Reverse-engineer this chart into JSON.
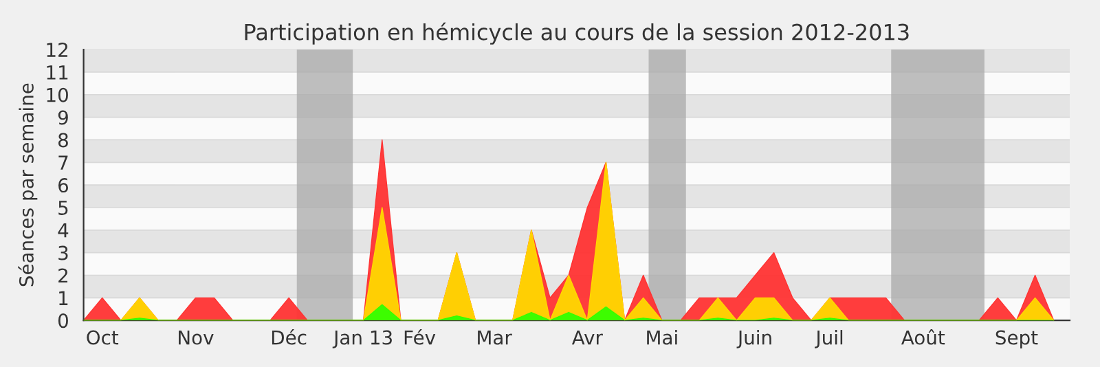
{
  "chart_data": {
    "type": "area",
    "title": "Participation en hémicycle au cours de la session 2012-2013",
    "ylabel": "Séances par semaine",
    "x": [
      "2012-09-28",
      "2012-10-05",
      "2012-10-12",
      "2012-10-19",
      "2012-10-26",
      "2012-11-02",
      "2012-11-09",
      "2012-11-16",
      "2012-11-23",
      "2012-11-30",
      "2012-12-07",
      "2012-12-14",
      "2012-12-21",
      "2012-12-28",
      "2013-01-04",
      "2013-01-11",
      "2013-01-18",
      "2013-01-25",
      "2013-02-01",
      "2013-02-08",
      "2013-02-15",
      "2013-02-22",
      "2013-03-01",
      "2013-03-08",
      "2013-03-15",
      "2013-03-22",
      "2013-03-29",
      "2013-04-05",
      "2013-04-12",
      "2013-04-19",
      "2013-04-26",
      "2013-05-03",
      "2013-05-10",
      "2013-05-17",
      "2013-05-24",
      "2013-05-31",
      "2013-06-07",
      "2013-06-14",
      "2013-06-21",
      "2013-06-28",
      "2013-07-05",
      "2013-07-12",
      "2013-07-19",
      "2013-07-26",
      "2013-08-02",
      "2013-08-09",
      "2013-08-16",
      "2013-08-23",
      "2013-08-30",
      "2013-09-06",
      "2013-09-13",
      "2013-09-20",
      "2013-09-27"
    ],
    "series": [
      {
        "color": "#ff3333",
        "values": [
          0,
          1,
          0,
          1,
          0,
          0,
          1,
          1,
          0,
          0,
          0,
          1,
          0,
          0,
          0,
          0,
          8,
          0,
          0,
          0,
          3,
          0,
          0,
          0,
          4,
          1,
          2,
          5,
          7,
          0,
          2,
          0,
          0,
          1,
          1,
          1,
          2,
          3,
          1,
          0,
          1,
          1,
          1,
          1,
          0,
          0,
          0,
          0,
          0,
          1,
          0,
          2,
          0
        ]
      },
      {
        "color": "#ffd700",
        "values": [
          0,
          0,
          0,
          1,
          0,
          0,
          0,
          0,
          0,
          0,
          0,
          0,
          0,
          0,
          0,
          0,
          5,
          0,
          0,
          0,
          3,
          0,
          0,
          0,
          4,
          0,
          2,
          0,
          7,
          0,
          1,
          0,
          0,
          0,
          1,
          0,
          1,
          1,
          0,
          0,
          1,
          0,
          0,
          0,
          0,
          0,
          0,
          0,
          0,
          0,
          0,
          1,
          0
        ]
      },
      {
        "color": "#33ff00",
        "values": [
          0,
          0,
          0,
          0.1,
          0,
          0,
          0,
          0,
          0,
          0,
          0,
          0,
          0,
          0,
          0,
          0,
          0.7,
          0,
          0,
          0,
          0.2,
          0,
          0,
          0,
          0.35,
          0,
          0.35,
          0,
          0.6,
          0,
          0.1,
          0,
          0,
          0,
          0.1,
          0,
          0,
          0.1,
          0,
          0,
          0.1,
          0,
          0,
          0,
          0,
          0,
          0,
          0,
          0,
          0,
          0,
          0,
          0
        ]
      }
    ],
    "xlim": [
      "2012-09-28",
      "2013-10-03"
    ],
    "ylim": [
      0,
      12
    ],
    "yticks": [
      0,
      1,
      2,
      3,
      4,
      5,
      6,
      7,
      8,
      9,
      10,
      11,
      12
    ],
    "xticks": [
      {
        "value": "2012-10-05",
        "label": "Oct"
      },
      {
        "value": "2012-11-09",
        "label": "Nov"
      },
      {
        "value": "2012-12-14",
        "label": "Déc"
      },
      {
        "value": "2013-01-11",
        "label": "Jan 13"
      },
      {
        "value": "2013-02-01",
        "label": "Fév"
      },
      {
        "value": "2013-03-01",
        "label": "Mar"
      },
      {
        "value": "2013-04-05",
        "label": "Avr"
      },
      {
        "value": "2013-05-03",
        "label": "Mai"
      },
      {
        "value": "2013-06-07",
        "label": "Juin"
      },
      {
        "value": "2013-07-05",
        "label": "Juil"
      },
      {
        "value": "2013-08-09",
        "label": "Août"
      },
      {
        "value": "2013-09-13",
        "label": "Sept"
      }
    ],
    "bands": [
      {
        "axis": "x",
        "from": "2012-12-17",
        "to": "2013-01-07",
        "color": "#aaaaaa"
      },
      {
        "axis": "x",
        "from": "2013-04-28",
        "to": "2013-05-12",
        "color": "#aaaaaa"
      },
      {
        "axis": "x",
        "from": "2013-07-28",
        "to": "2013-09-01",
        "color": "#aaaaaa"
      }
    ],
    "grid": "y",
    "legend": false
  }
}
